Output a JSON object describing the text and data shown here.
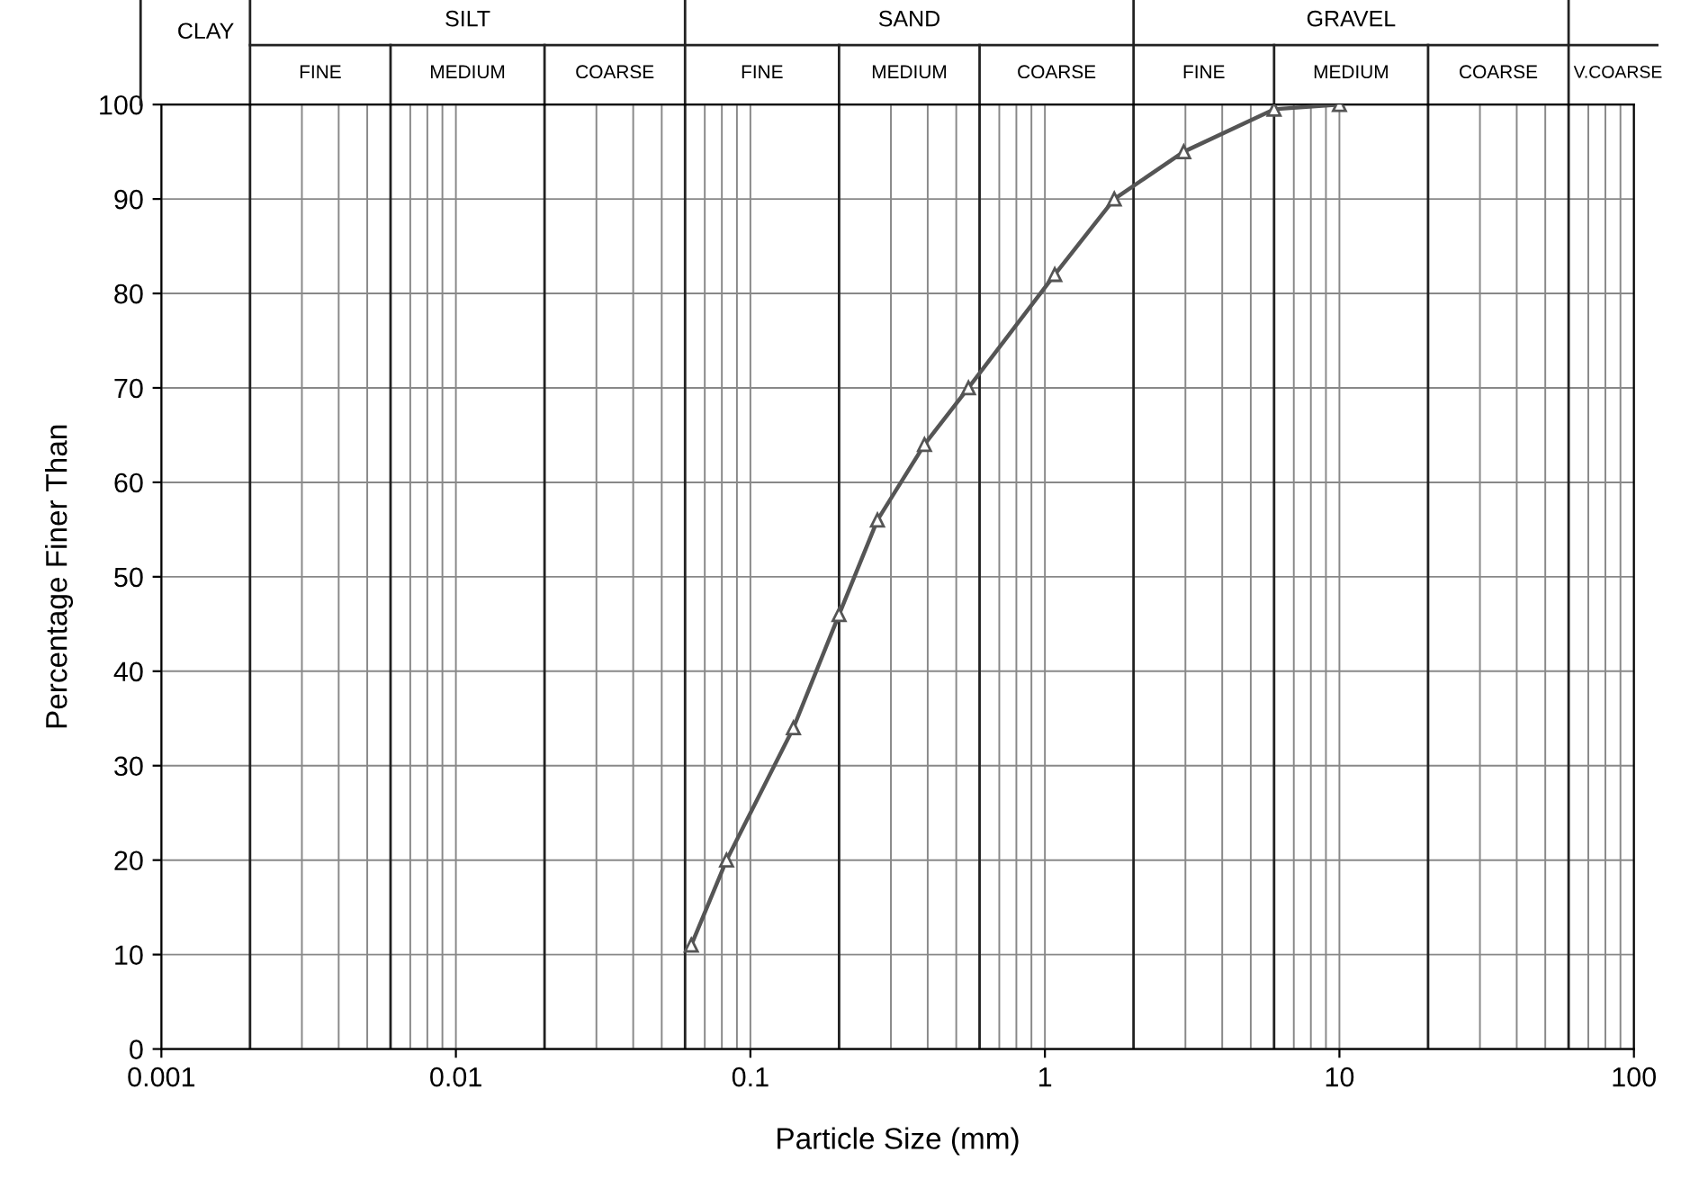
{
  "chart_data": {
    "type": "line",
    "xlabel": "Particle Size (mm)",
    "ylabel": "Percentage Finer Than",
    "x": [
      0.063,
      0.083,
      0.14,
      0.2,
      0.27,
      0.39,
      0.55,
      1.08,
      1.72,
      2.96,
      6.0,
      10
    ],
    "series": [
      {
        "color": "#555555",
        "values": [
          11,
          20,
          34,
          46,
          56,
          64,
          70,
          82,
          90,
          95,
          99.5,
          100
        ]
      }
    ],
    "log": "x",
    "xlim": [
      0.001,
      100
    ],
    "xticks": [
      0.001,
      0.01,
      0.1,
      1,
      10,
      100
    ],
    "ylim": [
      0,
      100
    ],
    "yticks": [
      0,
      10,
      20,
      30,
      40,
      50,
      60,
      70,
      80,
      90,
      100
    ],
    "grid": true,
    "marker": "triangle",
    "line_style": "solid",
    "ref_lines": [
      {
        "axis": "x",
        "value": 0.002,
        "color": "#222222"
      },
      {
        "axis": "x",
        "value": 0.006,
        "color": "#222222"
      },
      {
        "axis": "x",
        "value": 0.02,
        "color": "#222222"
      },
      {
        "axis": "x",
        "value": 0.06,
        "color": "#222222"
      },
      {
        "axis": "x",
        "value": 0.2,
        "color": "#222222"
      },
      {
        "axis": "x",
        "value": 0.6,
        "color": "#222222"
      },
      {
        "axis": "x",
        "value": 2,
        "color": "#222222"
      },
      {
        "axis": "x",
        "value": 6,
        "color": "#222222"
      },
      {
        "axis": "x",
        "value": 20,
        "color": "#222222"
      },
      {
        "axis": "x",
        "value": 60,
        "color": "#222222"
      }
    ],
    "annotations": [
      "CLAY",
      "SILT",
      "SAND",
      "GRAVEL",
      "FINE",
      "MEDIUM",
      "COARSE",
      "FINE",
      "MEDIUM",
      "COARSE",
      "FINE",
      "MEDIUM",
      "COARSE",
      "V.COARSE"
    ]
  }
}
